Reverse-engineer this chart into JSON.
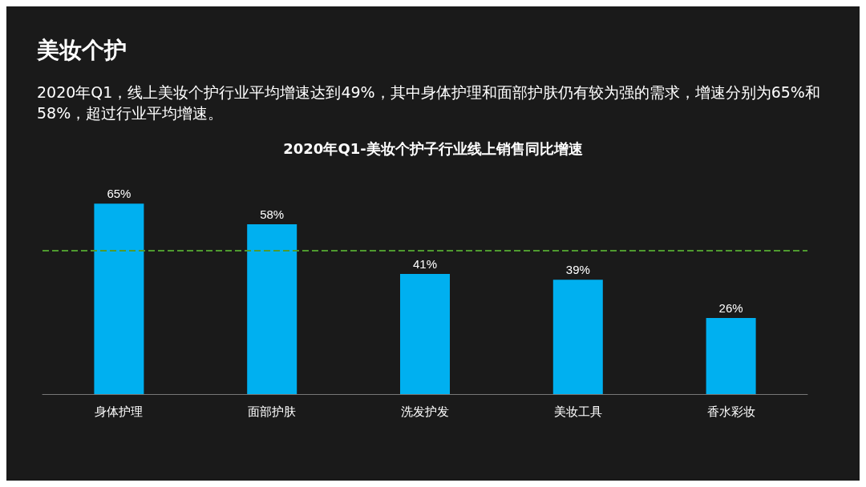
{
  "chart_data": {
    "type": "bar",
    "title": "2020年Q1-美妆个护子行业线上销售同比增速",
    "annotations": [
      "美妆个护",
      "2020年Q1，线上美妆个护行业平均增速达到49%，其中身体护理和面部护肤仍有较为强的需求，增速分别为65%和58%，超过行业平均增速。"
    ],
    "categories": [
      "身体护理",
      "面部护肤",
      "洗发护发",
      "美妆工具",
      "香水彩妆"
    ],
    "values": [
      65,
      58,
      41,
      39,
      26
    ],
    "value_labels": [
      "65%",
      "58%",
      "41%",
      "39%",
      "26%"
    ],
    "color": "#00b0f0",
    "tick_labels": "x",
    "ref_lines": [
      {
        "axis": "y",
        "value": 49,
        "color": "#4e9a2f",
        "line_style": "dashed"
      }
    ],
    "grid": false
  }
}
